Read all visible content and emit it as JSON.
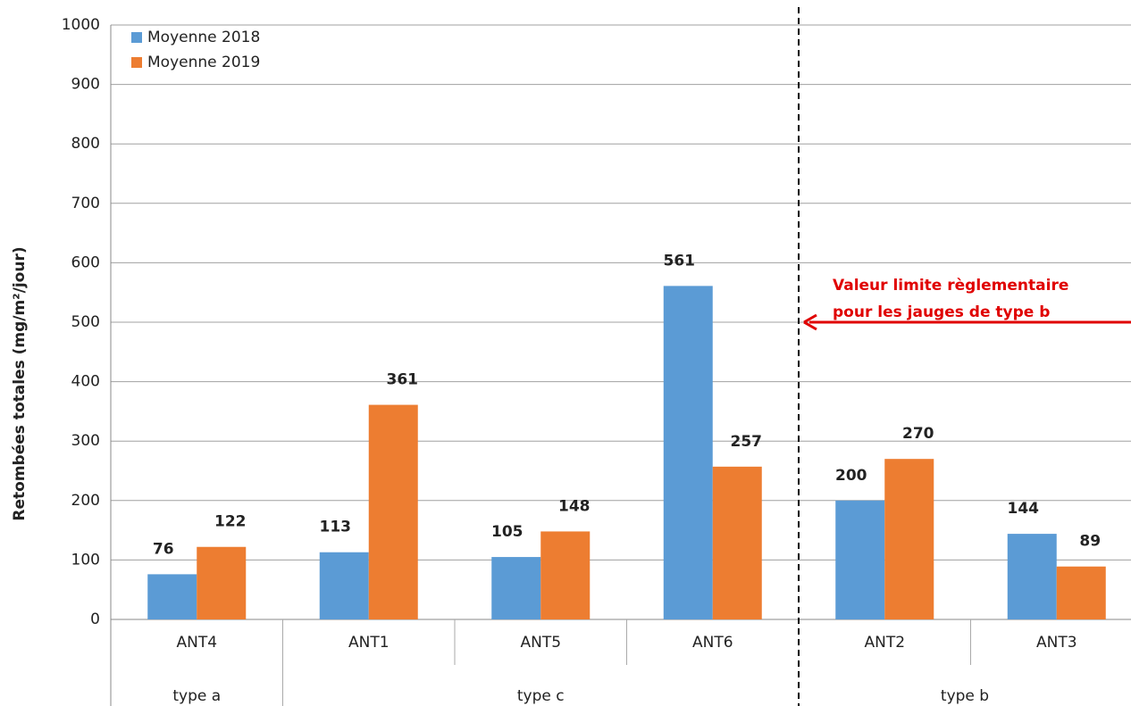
{
  "chart_data": {
    "type": "bar",
    "y_label": "Retombées totales (mg/m²/jour)",
    "categories": [
      "ANT4",
      "ANT1",
      "ANT5",
      "ANT6",
      "ANT2",
      "ANT3"
    ],
    "groups": [
      {
        "label": "type a",
        "count": 1
      },
      {
        "label": "type c",
        "count": 3
      },
      {
        "label": "type b",
        "count": 2
      }
    ],
    "series": [
      {
        "name": "Moyenne 2018",
        "color": "#5b9bd5",
        "values": [
          76,
          113,
          105,
          561,
          200,
          144
        ]
      },
      {
        "name": "Moyenne 2019",
        "color": "#ed7d31",
        "values": [
          122,
          361,
          148,
          257,
          270,
          89
        ]
      }
    ],
    "ylim": [
      0,
      1000
    ],
    "yticks": [
      0,
      100,
      200,
      300,
      400,
      500,
      600,
      700,
      800,
      900,
      1000
    ],
    "grid": true,
    "legend": "top-left",
    "annotation": {
      "text": [
        "Valeur limite règlementaire",
        "pour les jauges de type b"
      ],
      "value": 500,
      "color": "#e00000"
    }
  }
}
